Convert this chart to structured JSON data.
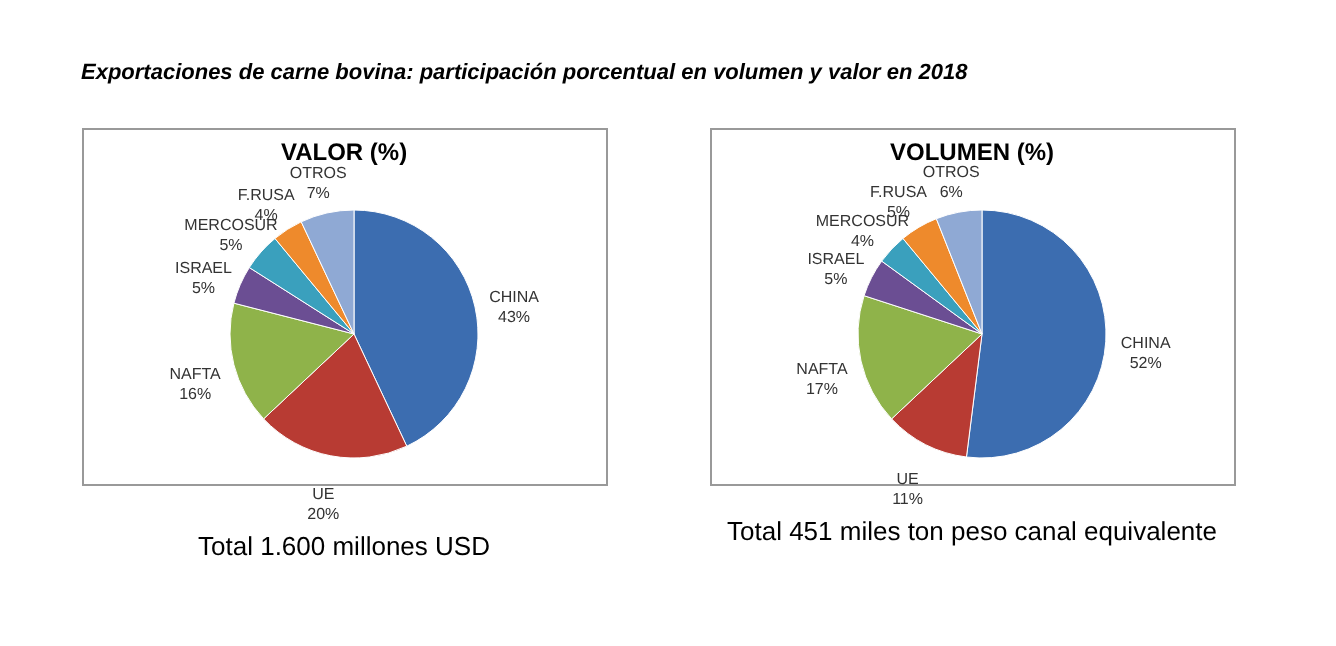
{
  "chart_data": [
    {
      "type": "pie",
      "title": "VALOR (%)",
      "categories": [
        "CHINA",
        "UE",
        "NAFTA",
        "ISRAEL",
        "MERCOSUR",
        "F.RUSA",
        "OTROS"
      ],
      "values": [
        43,
        20,
        16,
        5,
        5,
        4,
        7
      ],
      "value_labels": [
        "43%",
        "20%",
        "16%",
        "5%",
        "5%",
        "4%",
        "7%"
      ],
      "colors": [
        "#3c6db0",
        "#b83b33",
        "#8fb34a",
        "#6b4e93",
        "#3aa0bd",
        "#ee8a2c",
        "#8fa9d4"
      ],
      "legend": false,
      "annotations": [
        "Exportaciones de carne bovina: participación porcentual en volumen y valor en 2018",
        "Total 1.600 millones USD"
      ]
    },
    {
      "type": "pie",
      "title": "VOLUMEN (%)",
      "categories": [
        "CHINA",
        "UE",
        "NAFTA",
        "ISRAEL",
        "MERCOSUR",
        "F.RUSA",
        "OTROS"
      ],
      "values": [
        52,
        11,
        17,
        5,
        4,
        5,
        6
      ],
      "value_labels": [
        "52%",
        "11%",
        "17%",
        "5%",
        "4%",
        "5%",
        "6%"
      ],
      "colors": [
        "#3c6db0",
        "#b83b33",
        "#8fb34a",
        "#6b4e93",
        "#3aa0bd",
        "#ee8a2c",
        "#8fa9d4"
      ],
      "legend": false,
      "annotations": [
        "Total 451 miles ton peso canal equivalente"
      ]
    }
  ]
}
